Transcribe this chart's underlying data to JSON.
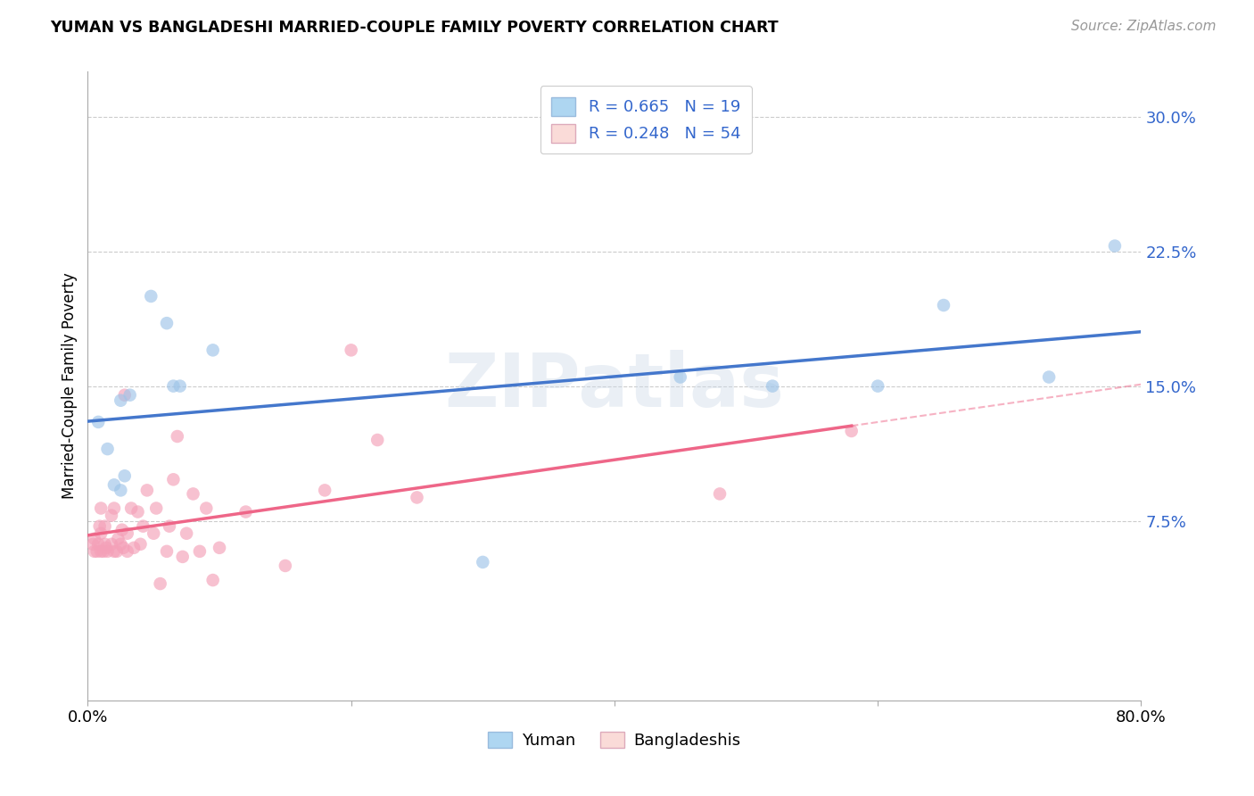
{
  "title": "YUMAN VS BANGLADESHI MARRIED-COUPLE FAMILY POVERTY CORRELATION CHART",
  "source": "Source: ZipAtlas.com",
  "ylabel": "Married-Couple Family Poverty",
  "xlim": [
    0.0,
    0.8
  ],
  "ylim": [
    -0.025,
    0.325
  ],
  "yticks": [
    0.075,
    0.15,
    0.225,
    0.3
  ],
  "ytick_labels": [
    "7.5%",
    "15.0%",
    "22.5%",
    "30.0%"
  ],
  "xticks": [
    0.0,
    0.2,
    0.4,
    0.6,
    0.8
  ],
  "xtick_labels": [
    "0.0%",
    "",
    "",
    "",
    "80.0%"
  ],
  "watermark": "ZIPatlas",
  "r_yuman": 0.665,
  "n_yuman": 19,
  "r_bangladeshi": 0.248,
  "n_bangladeshi": 54,
  "blue_scatter": "#9EC4E8",
  "pink_scatter": "#F4A0B8",
  "blue_line": "#4477CC",
  "pink_line": "#EE6688",
  "blue_legend_fill": "#AED6F1",
  "pink_legend_fill": "#FADBD8",
  "legend_text_color": "#3366CC",
  "yuman_x": [
    0.008,
    0.015,
    0.02,
    0.025,
    0.025,
    0.028,
    0.032,
    0.048,
    0.06,
    0.065,
    0.07,
    0.095,
    0.3,
    0.45,
    0.52,
    0.6,
    0.65,
    0.73,
    0.78
  ],
  "yuman_y": [
    0.13,
    0.115,
    0.095,
    0.092,
    0.142,
    0.1,
    0.145,
    0.2,
    0.185,
    0.15,
    0.15,
    0.17,
    0.052,
    0.155,
    0.15,
    0.15,
    0.195,
    0.155,
    0.228
  ],
  "bangladeshi_x": [
    0.004,
    0.005,
    0.005,
    0.007,
    0.008,
    0.009,
    0.01,
    0.01,
    0.01,
    0.012,
    0.013,
    0.013,
    0.014,
    0.015,
    0.018,
    0.018,
    0.02,
    0.02,
    0.022,
    0.023,
    0.025,
    0.026,
    0.027,
    0.028,
    0.03,
    0.03,
    0.033,
    0.035,
    0.038,
    0.04,
    0.042,
    0.045,
    0.05,
    0.052,
    0.055,
    0.06,
    0.062,
    0.065,
    0.068,
    0.072,
    0.075,
    0.08,
    0.085,
    0.09,
    0.095,
    0.1,
    0.12,
    0.15,
    0.18,
    0.2,
    0.22,
    0.25,
    0.48,
    0.58
  ],
  "bangladeshi_y": [
    0.062,
    0.058,
    0.065,
    0.058,
    0.062,
    0.072,
    0.058,
    0.068,
    0.082,
    0.058,
    0.062,
    0.072,
    0.06,
    0.058,
    0.062,
    0.078,
    0.058,
    0.082,
    0.058,
    0.065,
    0.062,
    0.07,
    0.06,
    0.145,
    0.058,
    0.068,
    0.082,
    0.06,
    0.08,
    0.062,
    0.072,
    0.092,
    0.068,
    0.082,
    0.04,
    0.058,
    0.072,
    0.098,
    0.122,
    0.055,
    0.068,
    0.09,
    0.058,
    0.082,
    0.042,
    0.06,
    0.08,
    0.05,
    0.092,
    0.17,
    0.12,
    0.088,
    0.09,
    0.125
  ]
}
